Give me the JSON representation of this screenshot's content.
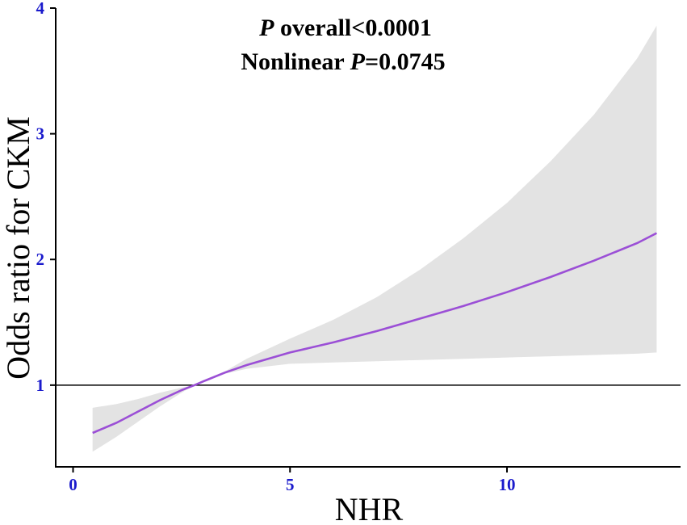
{
  "chart_data": {
    "type": "line",
    "title": "",
    "xlabel": "NHR",
    "ylabel": "Odds ratio for CKM",
    "xlim": [
      -0.4,
      14.0
    ],
    "ylim": [
      0.35,
      4.0
    ],
    "x_ticks": [
      0,
      5,
      10
    ],
    "y_ticks": [
      1,
      2,
      3,
      4
    ],
    "reference_line": {
      "y": 1,
      "color": "#000000"
    },
    "grid": false,
    "annotations": {
      "line1_italic": "P",
      "line1_rest": " overall<0.0001",
      "line2_prefix": "Nonlinear ",
      "line2_italic": "P",
      "line2_rest": "=0.0745"
    },
    "colors": {
      "line": "#9b4fd6",
      "band": "#e3e3e3",
      "tick_labels": "#1a1acc"
    },
    "series": [
      {
        "x": [
          0.45,
          1.0,
          1.5,
          2.0,
          2.5,
          2.8,
          3.0,
          3.5,
          4.0,
          5.0,
          6.0,
          7.0,
          8.0,
          9.0,
          10.0,
          11.0,
          12.0,
          13.0,
          13.45
        ],
        "y": [
          0.62,
          0.7,
          0.79,
          0.88,
          0.96,
          1.0,
          1.03,
          1.1,
          1.16,
          1.26,
          1.34,
          1.43,
          1.53,
          1.63,
          1.74,
          1.86,
          1.99,
          2.13,
          2.21
        ],
        "lower": [
          0.47,
          0.59,
          0.71,
          0.83,
          0.94,
          1.0,
          1.03,
          1.09,
          1.13,
          1.17,
          1.18,
          1.19,
          1.2,
          1.21,
          1.22,
          1.23,
          1.24,
          1.25,
          1.26
        ],
        "upper": [
          0.82,
          0.85,
          0.89,
          0.94,
          0.98,
          1.0,
          1.04,
          1.11,
          1.21,
          1.37,
          1.52,
          1.7,
          1.92,
          2.17,
          2.45,
          2.78,
          3.15,
          3.6,
          3.86
        ]
      }
    ]
  }
}
